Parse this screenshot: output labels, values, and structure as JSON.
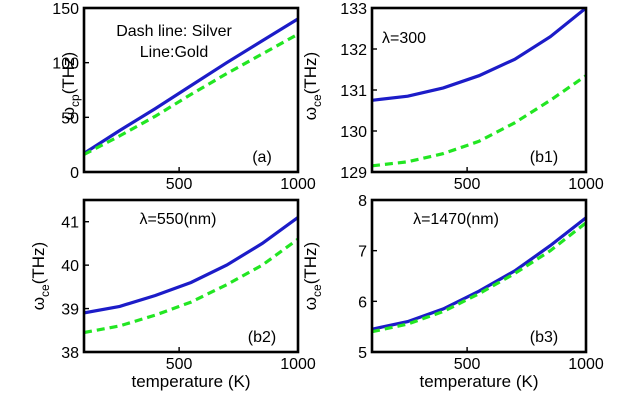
{
  "chart_data": [
    {
      "id": "a",
      "type": "line",
      "panel_label": "(a)",
      "ylabel": "ω_cp(THz)",
      "xlabel": "",
      "xlim": [
        100,
        1000
      ],
      "ylim": [
        0,
        150
      ],
      "xticks": [
        500,
        1000
      ],
      "yticks": [
        0,
        50,
        100,
        150
      ],
      "annotations": [
        "Dash line: Silver",
        "Line:Gold"
      ],
      "x": [
        100,
        250,
        400,
        550,
        700,
        850,
        1000
      ],
      "series": [
        {
          "name": "Gold",
          "values": [
            17,
            38,
            58,
            79,
            100,
            120,
            140
          ]
        },
        {
          "name": "Silver",
          "values": [
            16,
            33,
            51,
            71,
            90,
            108,
            126
          ]
        }
      ]
    },
    {
      "id": "b1",
      "type": "line",
      "panel_label": "(b1)",
      "ylabel": "ω_ce(THz)",
      "xlabel": "",
      "xlim": [
        100,
        1000
      ],
      "ylim": [
        129,
        133
      ],
      "xticks": [
        500,
        1000
      ],
      "yticks": [
        129,
        130,
        131,
        132,
        133
      ],
      "annotations": [
        "λ=300"
      ],
      "x": [
        100,
        250,
        400,
        550,
        700,
        850,
        1000
      ],
      "series": [
        {
          "name": "Gold",
          "values": [
            130.75,
            130.85,
            131.05,
            131.35,
            131.75,
            132.3,
            133.0
          ]
        },
        {
          "name": "Silver",
          "values": [
            129.15,
            129.25,
            129.45,
            129.75,
            130.2,
            130.75,
            131.35
          ]
        }
      ]
    },
    {
      "id": "b2",
      "type": "line",
      "panel_label": "(b2)",
      "ylabel": "ω_ce(THz)",
      "xlabel": "temperature (K)",
      "xlim": [
        100,
        1000
      ],
      "ylim": [
        38,
        41.5
      ],
      "xticks": [
        500,
        1000
      ],
      "yticks": [
        38,
        39,
        40,
        41
      ],
      "annotations": [
        "λ=550(nm)"
      ],
      "x": [
        100,
        250,
        400,
        550,
        700,
        850,
        1000
      ],
      "series": [
        {
          "name": "Gold",
          "values": [
            38.9,
            39.05,
            39.3,
            39.6,
            40.0,
            40.5,
            41.1
          ]
        },
        {
          "name": "Silver",
          "values": [
            38.45,
            38.6,
            38.85,
            39.15,
            39.55,
            40.0,
            40.6
          ]
        }
      ]
    },
    {
      "id": "b3",
      "type": "line",
      "panel_label": "(b3)",
      "ylabel": "ω_ce(THz)",
      "xlabel": "temperature (K)",
      "xlim": [
        100,
        1000
      ],
      "ylim": [
        5,
        8
      ],
      "xticks": [
        500,
        1000
      ],
      "yticks": [
        5,
        6,
        7,
        8
      ],
      "annotations": [
        "λ=1470(nm)"
      ],
      "x": [
        100,
        250,
        400,
        550,
        700,
        850,
        1000
      ],
      "series": [
        {
          "name": "Gold",
          "values": [
            5.45,
            5.6,
            5.85,
            6.2,
            6.6,
            7.1,
            7.65
          ]
        },
        {
          "name": "Silver",
          "values": [
            5.4,
            5.55,
            5.8,
            6.15,
            6.55,
            7.0,
            7.55
          ]
        }
      ]
    }
  ],
  "colors": {
    "gold_line": "#1c1cc8",
    "silver_line": "#22e622",
    "frame": "#000000",
    "background": "#ffffff"
  }
}
